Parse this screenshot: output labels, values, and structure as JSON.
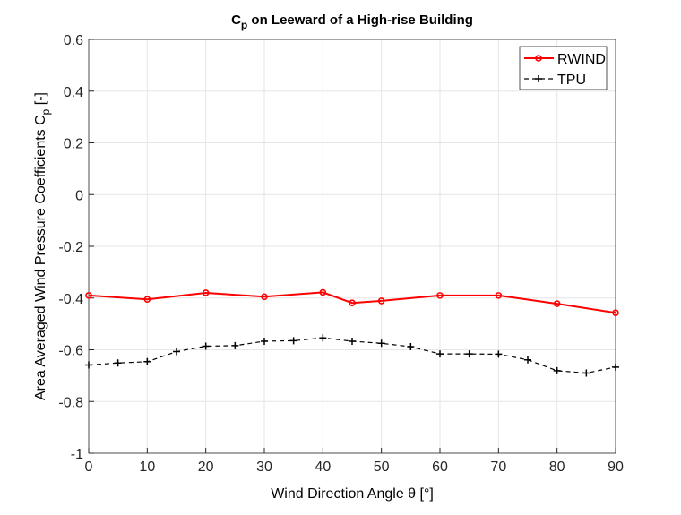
{
  "chart_data": {
    "type": "line",
    "title_main": "C",
    "title_sub": "p",
    "title_rest": " on Leeward of a High-rise Building",
    "xlabel": "Wind Direction Angle θ [°]",
    "ylabel_main": "Area Averaged Wind Pressure Coefficients C",
    "ylabel_sub": "p",
    "ylabel_rest": " [-]",
    "xlim": [
      0,
      90
    ],
    "ylim": [
      -1,
      0.6
    ],
    "xticks": [
      0,
      10,
      20,
      30,
      40,
      50,
      60,
      70,
      80,
      90
    ],
    "yticks": [
      -1,
      -0.8,
      -0.6,
      -0.4,
      -0.2,
      0,
      0.2,
      0.4,
      0.6
    ],
    "ytick_labels": [
      "-1",
      "-0.8",
      "-0.6",
      "-0.4",
      "-0.2",
      "0",
      "0.2",
      "0.4",
      "0.6"
    ],
    "grid": true,
    "legend_placement": "top-right",
    "series": [
      {
        "name": "RWIND",
        "color": "#ff0000",
        "style": "solid-circle-markers",
        "x": [
          0,
          10,
          20,
          30,
          40,
          45,
          50,
          60,
          70,
          80,
          90
        ],
        "y": [
          -0.39,
          -0.405,
          -0.38,
          -0.395,
          -0.378,
          -0.419,
          -0.411,
          -0.39,
          -0.39,
          -0.422,
          -0.457
        ]
      },
      {
        "name": "TPU",
        "color": "#000000",
        "style": "dashed-plus-markers",
        "x": [
          0,
          5,
          10,
          15,
          20,
          25,
          30,
          35,
          40,
          45,
          50,
          55,
          60,
          65,
          70,
          75,
          80,
          85,
          90
        ],
        "y": [
          -0.659,
          -0.651,
          -0.646,
          -0.607,
          -0.586,
          -0.584,
          -0.567,
          -0.565,
          -0.554,
          -0.567,
          -0.575,
          -0.588,
          -0.616,
          -0.616,
          -0.617,
          -0.639,
          -0.681,
          -0.69,
          -0.667
        ]
      }
    ]
  }
}
